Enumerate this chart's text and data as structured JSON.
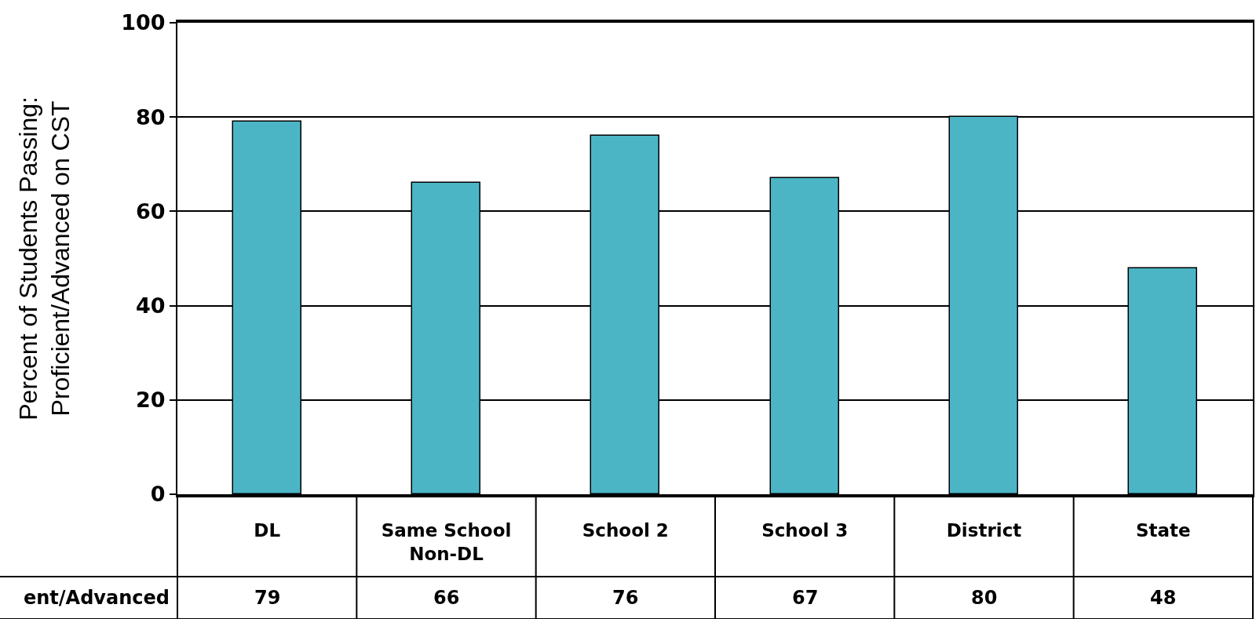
{
  "chart_data": {
    "type": "bar",
    "ylabel": "Percent of Students Passing: Proficient/Advanced on CST",
    "categories": [
      "DL",
      "Same School Non-DL",
      "School 2",
      "School 3",
      "District",
      "State"
    ],
    "values": [
      79,
      66,
      76,
      67,
      80,
      48
    ],
    "color": "#4bb5c6",
    "ylim": [
      0,
      100
    ],
    "yticks": [
      0,
      20,
      40,
      60,
      80,
      100
    ],
    "grid": "y",
    "legend": false,
    "data_labels": true,
    "annotations": [
      "ent/Advanced"
    ]
  }
}
